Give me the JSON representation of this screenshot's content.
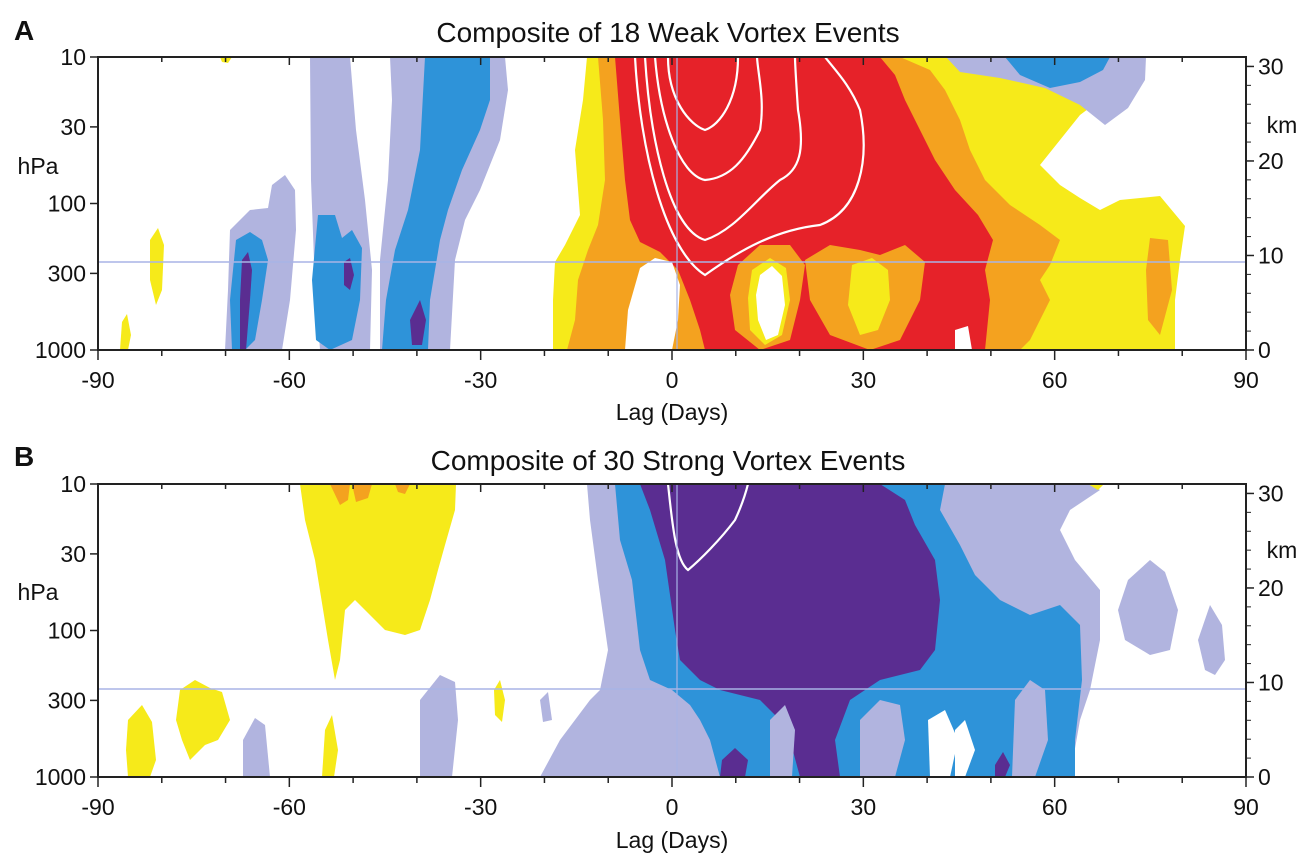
{
  "chart_data": [
    {
      "type": "heatmap",
      "panel_label": "A",
      "title": "Composite of 18 Weak Vortex Events",
      "xlabel": "Lag (Days)",
      "ylabel_left": "hPa",
      "ylabel_right": "km",
      "x_ticks": [
        "-90",
        "-60",
        "-30",
        "0",
        "30",
        "60",
        "90"
      ],
      "xlim": [
        -90,
        90
      ],
      "y_ticks_left": [
        "10",
        "30",
        "100",
        "300",
        "1000"
      ],
      "y_ticks_right": [
        "30",
        "20",
        "10",
        "0"
      ],
      "y_scale": "log pressure",
      "ylim_hPa": [
        1000,
        10
      ],
      "reference_line_hPa": 250,
      "reference_line_x": 0,
      "sign": "positive anomalies (weak vortex)",
      "regions": [
        {
          "level": -3,
          "x": -69,
          "p": [
            300,
            1000
          ]
        },
        {
          "level": -3,
          "x": -53,
          "p": [
            250,
            400
          ]
        },
        {
          "level": -3,
          "x": -41,
          "p": [
            500,
            1000
          ]
        },
        {
          "level": -2,
          "x": [
            -69,
            -64
          ],
          "p": [
            150,
            1000
          ]
        },
        {
          "level": -2,
          "x": [
            -57,
            -50
          ],
          "p": [
            150,
            1000
          ]
        },
        {
          "level": -2,
          "x": [
            -45,
            -38
          ],
          "p": [
            10,
            1000
          ]
        },
        {
          "level": 3,
          "x": [
            -10,
            50
          ],
          "p": [
            10,
            1000
          ]
        },
        {
          "level": 2,
          "x": [
            -14,
            78
          ],
          "p": [
            10,
            1000
          ]
        },
        {
          "level": 1,
          "x": [
            -20,
            80
          ],
          "p": [
            10,
            1000
          ]
        }
      ],
      "contours_peak_region": {
        "x": [
          -5,
          30
        ],
        "p": [
          10,
          300
        ]
      }
    },
    {
      "type": "heatmap",
      "panel_label": "B",
      "title": "Composite of 30 Strong Vortex Events",
      "xlabel": "Lag (Days)",
      "ylabel_left": "hPa",
      "ylabel_right": "km",
      "x_ticks": [
        "-90",
        "-60",
        "-30",
        "0",
        "30",
        "60",
        "90"
      ],
      "xlim": [
        -90,
        90
      ],
      "y_ticks_left": [
        "10",
        "30",
        "100",
        "300",
        "1000"
      ],
      "y_ticks_right": [
        "30",
        "20",
        "10",
        "0"
      ],
      "y_scale": "log pressure",
      "ylim_hPa": [
        1000,
        10
      ],
      "reference_line_hPa": 250,
      "reference_line_x": 0,
      "sign": "negative anomalies (strong vortex)",
      "regions": [
        {
          "level": 1,
          "x": [
            -59,
            -35
          ],
          "p": [
            10,
            150
          ]
        },
        {
          "level": 2,
          "x": [
            -55,
            -43
          ],
          "p": [
            10,
            15
          ]
        },
        {
          "level": -3,
          "x": [
            -6,
            40
          ],
          "p": [
            10,
            1000
          ]
        },
        {
          "level": -2,
          "x": [
            -11,
            64
          ],
          "p": [
            10,
            1000
          ]
        },
        {
          "level": -1,
          "x": [
            -15,
            80
          ],
          "p": [
            10,
            1000
          ]
        }
      ],
      "contours_peak_region": {
        "x": [
          0,
          12
        ],
        "p": [
          10,
          40
        ]
      }
    }
  ],
  "colors": {
    "neg3": "#5a2d91",
    "neg2": "#2e93d9",
    "neg1": "#b1b4df",
    "pos1": "#f6ea1a",
    "pos2": "#f4a21f",
    "pos3": "#e62229",
    "contour": "#ffffff",
    "refline": "#a8b4e6"
  }
}
